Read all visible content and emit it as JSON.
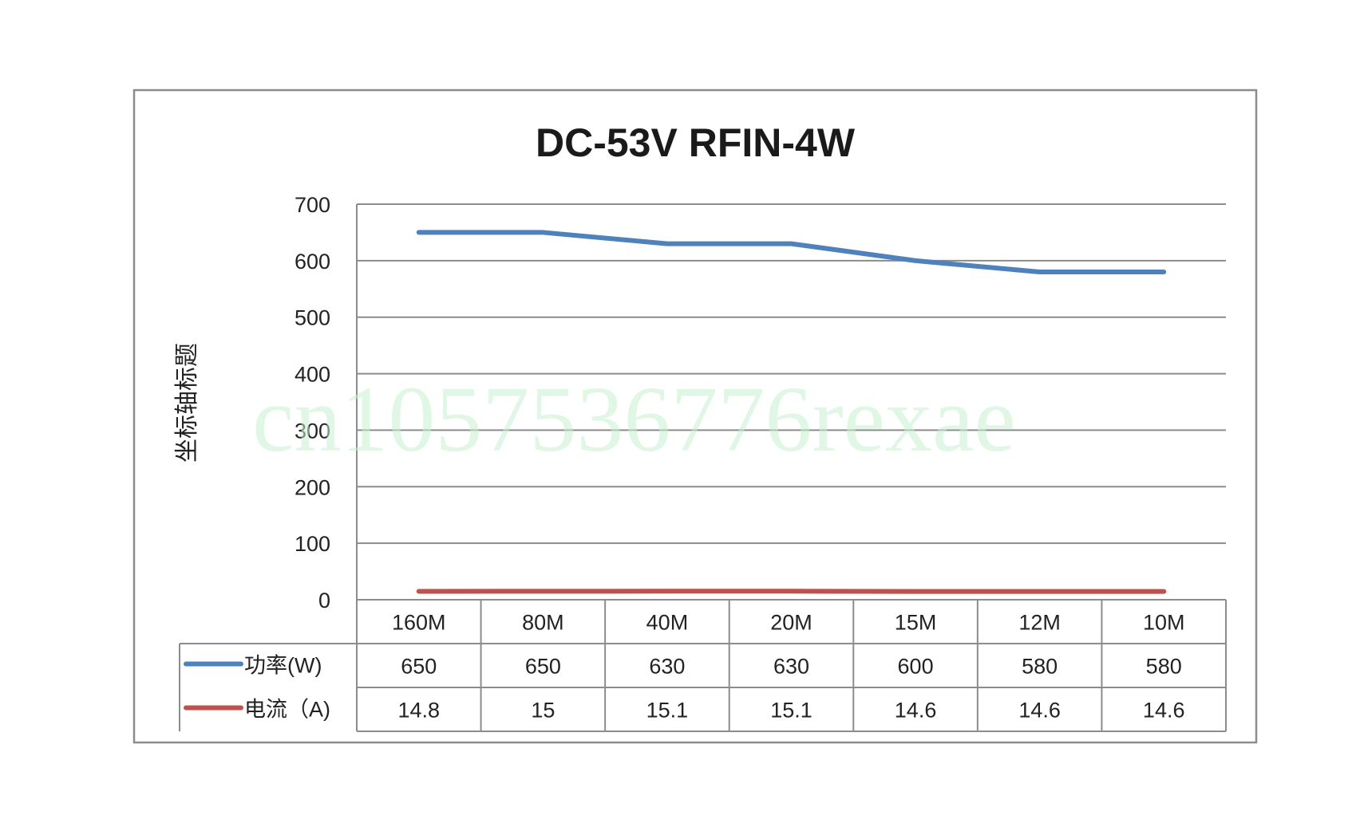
{
  "chart_data": {
    "type": "line",
    "title": "DC-53V   RFIN-4W",
    "ylabel": "坐标轴标题",
    "xlabel": "",
    "ylim": [
      0,
      700
    ],
    "yticks": [
      0,
      100,
      200,
      300,
      400,
      500,
      600,
      700
    ],
    "grid": true,
    "legend": "data-table-left",
    "categories": [
      "160M",
      "80M",
      "40M",
      "20M",
      "15M",
      "12M",
      "10M"
    ],
    "series": [
      {
        "name": "功率(W)",
        "color": "#4f81bd",
        "values": [
          650,
          650,
          630,
          630,
          600,
          580,
          580
        ]
      },
      {
        "name": "电流（A)",
        "color": "#c0504d",
        "values": [
          14.8,
          15,
          15.1,
          15.1,
          14.6,
          14.6,
          14.6
        ]
      }
    ]
  },
  "watermark": "cn1057536776rexae"
}
